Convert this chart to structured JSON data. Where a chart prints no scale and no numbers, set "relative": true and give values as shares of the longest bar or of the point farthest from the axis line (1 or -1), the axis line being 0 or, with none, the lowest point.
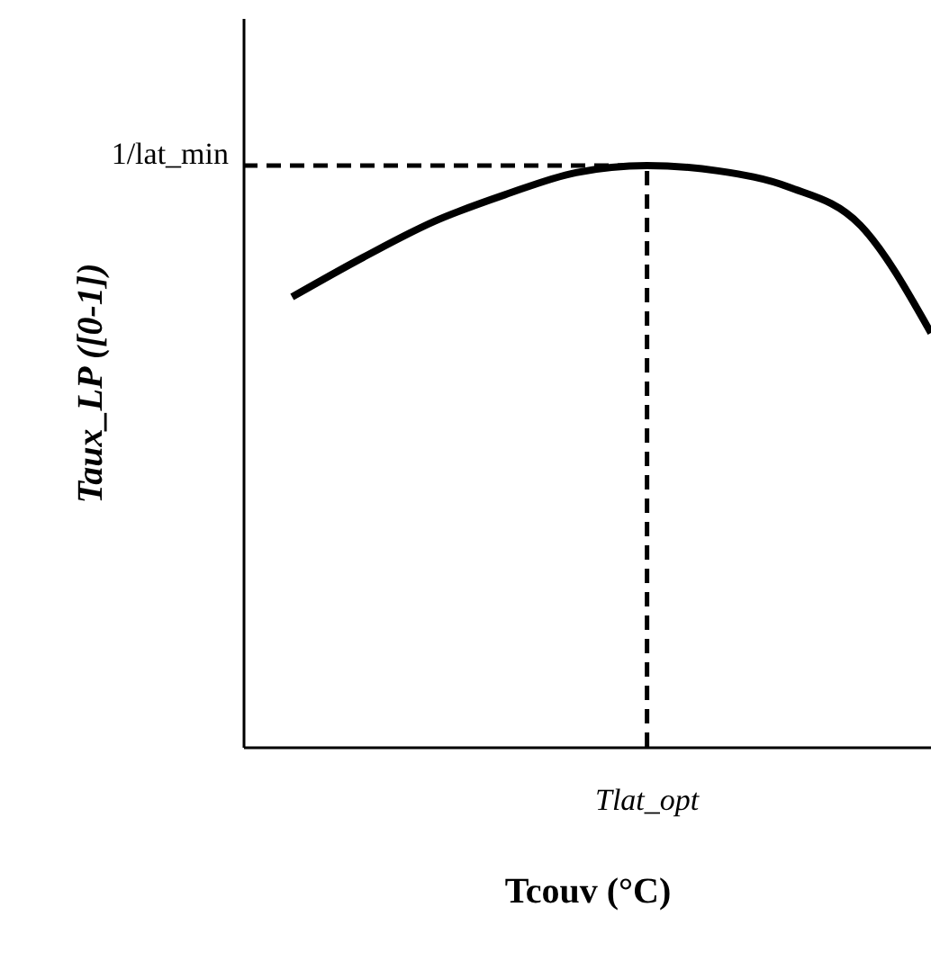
{
  "chart_data": {
    "type": "line",
    "relative": true,
    "xlabel": "Tcouv (°C)",
    "ylabel": "Taux_LP ([0-1])",
    "categories": [
      null,
      null,
      null,
      null,
      null,
      null,
      null,
      null,
      null,
      null
    ],
    "series": [
      {
        "color": "#000000",
        "values": [
          0.774,
          0.842,
          0.904,
          0.95,
          0.988,
          1.0,
          0.991,
          0.963,
          0.898,
          0.712
        ]
      }
    ],
    "ref_lines": [
      {
        "axis": "y",
        "value": 1,
        "label": "1/lat_min",
        "color": "#000000",
        "line_style": "dashed"
      }
    ],
    "annotations": [
      "Tlat_opt"
    ],
    "marker": "none",
    "line_style": "solid",
    "grid": false
  }
}
